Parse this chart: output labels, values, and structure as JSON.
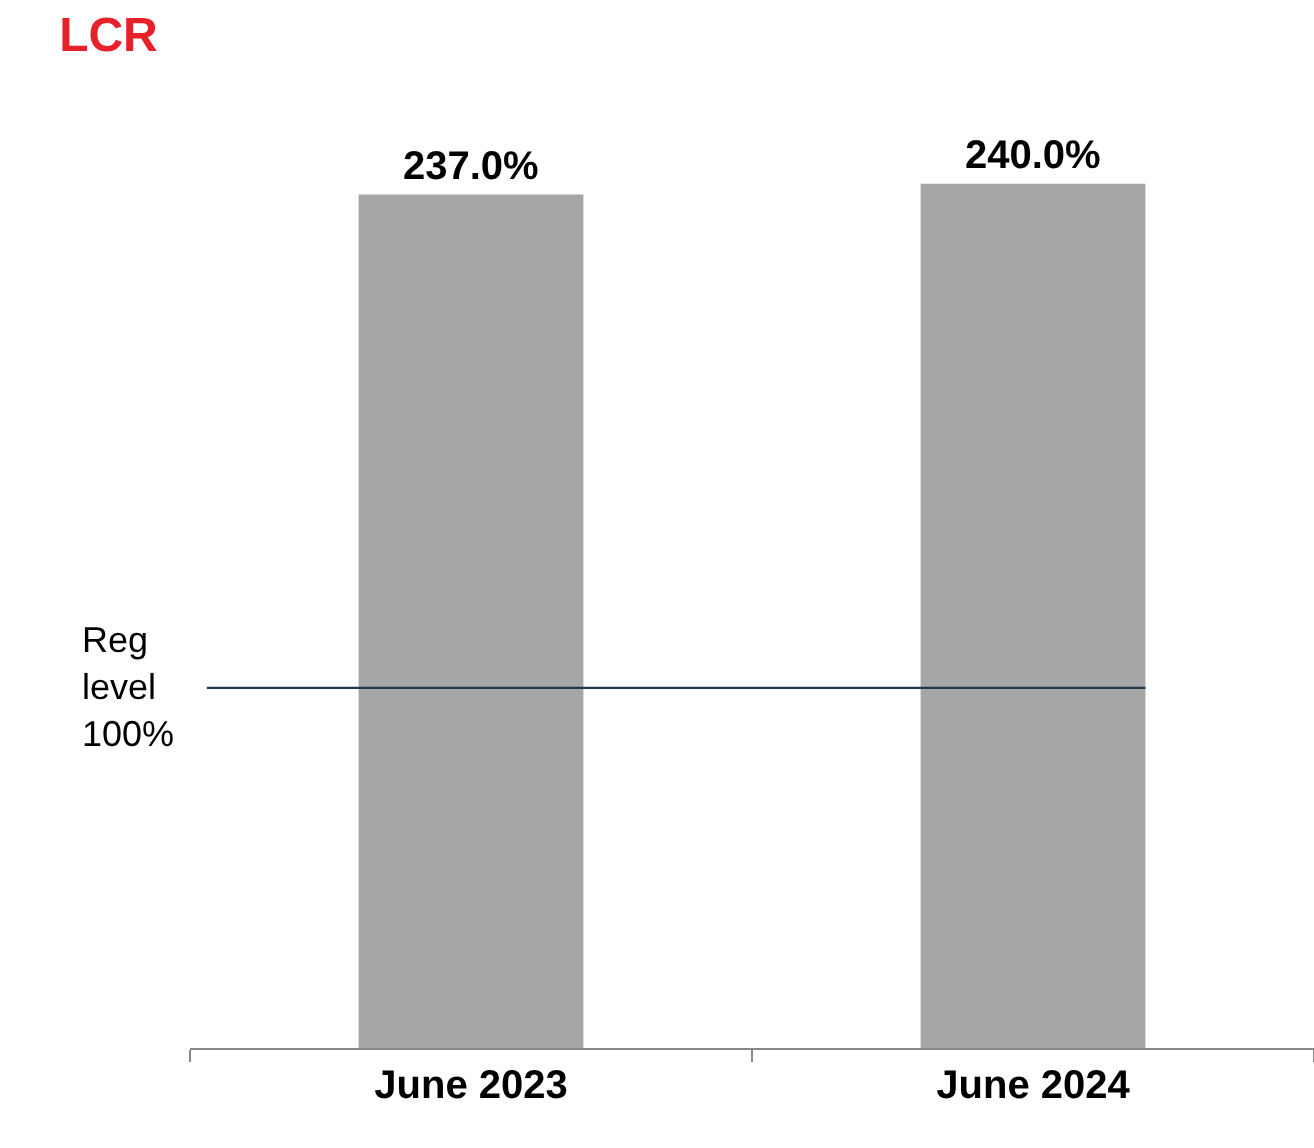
{
  "chart_data": {
    "type": "bar",
    "title": "LCR",
    "categories": [
      "June 2023",
      "June 2024"
    ],
    "values": [
      237.0,
      240.0
    ],
    "value_labels": [
      "237.0%",
      "240.0%"
    ],
    "color": "#a6a6a6",
    "ref_lines": [
      {
        "axis": "y",
        "value": 100,
        "label": "Reg\nlevel\n100%",
        "color": "#1f3a4d",
        "line_style": "solid"
      }
    ],
    "legend": false
  }
}
